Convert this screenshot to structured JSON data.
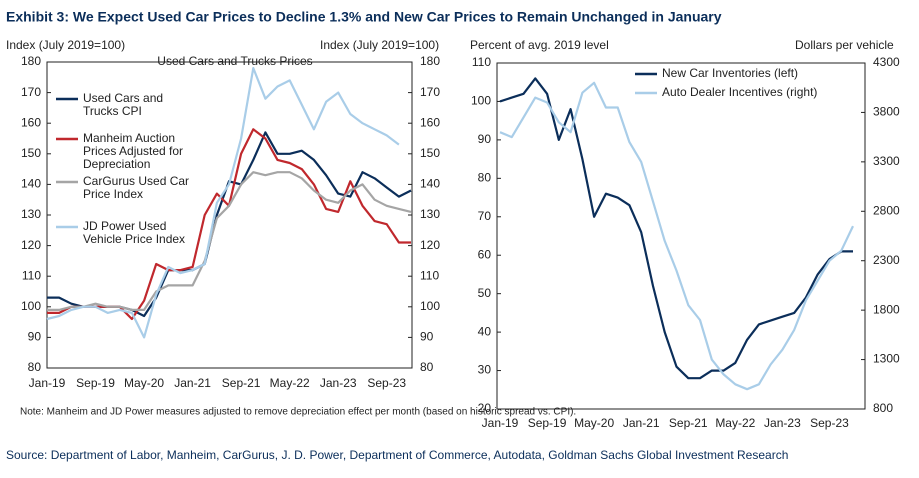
{
  "title": "Exhibit 3: We Expect Used Car Prices to Decline 1.3% and New Car Prices to Remain Unchanged in January",
  "note": "Note: Manheim and JD Power measures adjusted to remove depreciation effect per month (based on historic spread vs. CPI).",
  "source": "Source: Department of Labor, Manheim, CarGurus, J. D. Power, Department of Commerce, Autodata, Goldman Sachs Global Investment Research",
  "chart_data": [
    {
      "type": "line",
      "subtitle": "Used Cars and Trucks Prices",
      "ylabel": "Index (July 2019=100)",
      "y2label": "Index (July 2019=100)",
      "categories": [
        "Jan-19",
        null,
        null,
        null,
        "Sep-19",
        null,
        null,
        null,
        "May-20",
        null,
        null,
        null,
        "Jan-21",
        null,
        null,
        null,
        "Sep-21",
        null,
        null,
        null,
        "May-22",
        null,
        null,
        null,
        "Jan-23",
        null,
        null,
        null,
        "Sep-23",
        null,
        null
      ],
      "series": [
        {
          "name": "Used Cars and Trucks CPI",
          "color": "#0b2e5a",
          "values": [
            103,
            103,
            101,
            100,
            100,
            100,
            100,
            99,
            97,
            103,
            112,
            112,
            112,
            114,
            130,
            141,
            140,
            148,
            157,
            150,
            150,
            151,
            148,
            143,
            137,
            136,
            144,
            142,
            139,
            136,
            138
          ]
        },
        {
          "name": "Manheim Auction Prices Adjusted for Depreciation",
          "color": "#c0282d",
          "values": [
            98,
            98,
            100,
            100,
            100,
            100,
            100,
            96,
            102,
            114,
            112,
            112,
            113,
            130,
            137,
            133,
            150,
            158,
            155,
            148,
            147,
            145,
            140,
            132,
            131,
            141,
            133,
            128,
            127,
            121,
            121
          ]
        },
        {
          "name": "CarGurus Used Car Price Index",
          "color": "#a5a5a5",
          "values": [
            99,
            99,
            100,
            100,
            101,
            100,
            100,
            99,
            99,
            105,
            107,
            107,
            107,
            115,
            129,
            133,
            140,
            144,
            143,
            144,
            144,
            142,
            138,
            135,
            134,
            138,
            140,
            135,
            133,
            132,
            131
          ]
        },
        {
          "name": "JD Power Used Vehicle Price Index",
          "color": "#a9cde8",
          "values": [
            96,
            97,
            99,
            100,
            100,
            98,
            99,
            98,
            90,
            104,
            113,
            111,
            112,
            114,
            134,
            140,
            155,
            178,
            168,
            172,
            174,
            166,
            158,
            167,
            170,
            163,
            160,
            158,
            156,
            153,
            null
          ]
        }
      ],
      "ylim": [
        80,
        180
      ],
      "yticks": [
        80,
        90,
        100,
        110,
        120,
        130,
        140,
        150,
        160,
        170,
        180
      ],
      "y2lim": [
        80,
        180
      ],
      "y2ticks": [
        80,
        90,
        100,
        110,
        120,
        130,
        140,
        150,
        160,
        170,
        180
      ]
    },
    {
      "type": "line",
      "ylabel": "Percent of avg. 2019 level",
      "y2label": "Dollars per vehicle",
      "categories": [
        "Jan-19",
        null,
        null,
        null,
        "Sep-19",
        null,
        null,
        null,
        "May-20",
        null,
        null,
        null,
        "Jan-21",
        null,
        null,
        null,
        "Sep-21",
        null,
        null,
        null,
        "May-22",
        null,
        null,
        null,
        "Jan-23",
        null,
        null,
        null,
        "Sep-23",
        null,
        null
      ],
      "series": [
        {
          "name": "New Car Inventories (left)",
          "color": "#0b2e5a",
          "values": [
            100,
            101,
            102,
            106,
            102,
            90,
            98,
            85,
            70,
            76,
            75,
            73,
            66,
            52,
            40,
            31,
            28,
            28,
            30,
            30,
            32,
            38,
            42,
            43,
            44,
            45,
            49,
            55,
            59,
            61,
            61
          ]
        },
        {
          "name": "Auto Dealer Incentives (right)",
          "color": "#a9cde8",
          "axis": "y2",
          "values": [
            3600,
            3550,
            3750,
            3950,
            3900,
            3700,
            3600,
            4000,
            4100,
            3850,
            3850,
            3500,
            3300,
            2900,
            2500,
            2200,
            1850,
            1700,
            1300,
            1150,
            1050,
            1000,
            1050,
            1250,
            1400,
            1600,
            1900,
            2100,
            2300,
            2400,
            2650
          ]
        }
      ],
      "ylim": [
        20,
        110
      ],
      "yticks": [
        20,
        30,
        40,
        50,
        60,
        70,
        80,
        90,
        100,
        110
      ],
      "y2lim": [
        800,
        4300
      ],
      "y2ticks": [
        800,
        1300,
        1800,
        2300,
        2800,
        3300,
        3800,
        4300
      ]
    }
  ]
}
